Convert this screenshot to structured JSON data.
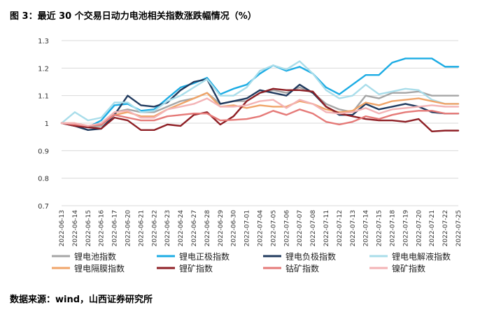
{
  "figure": {
    "title": "图 3：最近 30 个交易日动力电池相关指数涨跌幅情况（%）",
    "source": "数据来源：wind，山西证券研究所"
  },
  "chart_data": {
    "type": "line",
    "title": "",
    "xlabel": "",
    "ylabel": "",
    "ylim": [
      0.7,
      1.3
    ],
    "yticks": [
      0.7,
      0.8,
      0.9,
      1,
      1.1,
      1.2,
      1.3
    ],
    "ytick_labels": [
      "0.7",
      "0.8",
      "0.9",
      "1",
      "1.1",
      "1.2",
      "1.3"
    ],
    "grid": true,
    "legend_position": "bottom",
    "x": [
      "2022-06-13",
      "2022-06-14",
      "2022-06-15",
      "2022-06-16",
      "2022-06-17",
      "2022-06-20",
      "2022-06-21",
      "2022-06-22",
      "2022-06-23",
      "2022-06-24",
      "2022-06-27",
      "2022-06-28",
      "2022-06-29",
      "2022-06-30",
      "2022-07-01",
      "2022-07-04",
      "2022-07-05",
      "2022-07-06",
      "2022-07-07",
      "2022-07-08",
      "2022-07-11",
      "2022-07-12",
      "2022-07-13",
      "2022-07-14",
      "2022-07-15",
      "2022-07-18",
      "2022-07-19",
      "2022-07-20",
      "2022-07-21",
      "2022-07-22",
      "2022-07-25"
    ],
    "series": [
      {
        "name": "锂电池指数",
        "color": "#a6a6a6",
        "values": [
          1.0,
          0.995,
          0.985,
          0.99,
          1.04,
          1.05,
          1.04,
          1.04,
          1.06,
          1.08,
          1.09,
          1.11,
          1.07,
          1.08,
          1.08,
          1.11,
          1.12,
          1.11,
          1.13,
          1.11,
          1.07,
          1.05,
          1.04,
          1.1,
          1.09,
          1.11,
          1.11,
          1.115,
          1.1,
          1.1,
          1.1
        ]
      },
      {
        "name": "锂电正极指数",
        "color": "#1cace4",
        "values": [
          1.0,
          0.99,
          0.985,
          1.01,
          1.065,
          1.07,
          1.045,
          1.05,
          1.09,
          1.13,
          1.145,
          1.165,
          1.105,
          1.125,
          1.14,
          1.18,
          1.21,
          1.19,
          1.205,
          1.18,
          1.13,
          1.105,
          1.14,
          1.175,
          1.175,
          1.22,
          1.235,
          1.235,
          1.235,
          1.205,
          1.205
        ]
      },
      {
        "name": "锂电负极指数",
        "color": "#203a5e",
        "values": [
          1.0,
          0.99,
          0.975,
          0.98,
          1.03,
          1.1,
          1.065,
          1.06,
          1.075,
          1.12,
          1.15,
          1.16,
          1.07,
          1.08,
          1.09,
          1.12,
          1.11,
          1.1,
          1.14,
          1.11,
          1.06,
          1.03,
          1.03,
          1.07,
          1.05,
          1.06,
          1.07,
          1.06,
          1.04,
          1.035,
          1.035
        ]
      },
      {
        "name": "锂电电解液指数",
        "color": "#a9ddea",
        "values": [
          1.0,
          1.04,
          1.01,
          1.02,
          1.075,
          1.075,
          1.04,
          1.045,
          1.08,
          1.1,
          1.13,
          1.16,
          1.1,
          1.1,
          1.13,
          1.19,
          1.21,
          1.195,
          1.225,
          1.18,
          1.12,
          1.09,
          1.1,
          1.14,
          1.105,
          1.115,
          1.125,
          1.12,
          1.085,
          1.07,
          1.07
        ]
      },
      {
        "name": "锂电隔膜指数",
        "color": "#f0a468",
        "values": [
          1.0,
          1.0,
          0.99,
          0.995,
          1.03,
          1.04,
          1.025,
          1.025,
          1.05,
          1.07,
          1.09,
          1.11,
          1.06,
          1.065,
          1.055,
          1.065,
          1.06,
          1.06,
          1.08,
          1.07,
          1.05,
          1.04,
          1.045,
          1.075,
          1.065,
          1.08,
          1.085,
          1.09,
          1.08,
          1.07,
          1.07
        ]
      },
      {
        "name": "锂矿指数",
        "color": "#8e1f25",
        "values": [
          1.0,
          0.99,
          0.985,
          0.98,
          1.02,
          1.01,
          0.975,
          0.975,
          0.995,
          0.99,
          1.03,
          1.04,
          0.995,
          1.025,
          1.08,
          1.11,
          1.125,
          1.12,
          1.12,
          1.115,
          1.06,
          1.035,
          1.025,
          1.015,
          1.01,
          1.01,
          1.005,
          1.015,
          0.97,
          0.973,
          0.973
        ]
      },
      {
        "name": "钴矿指数",
        "color": "#e57a78",
        "values": [
          1.0,
          0.995,
          0.99,
          0.995,
          1.03,
          1.02,
          1.01,
          1.01,
          1.025,
          1.03,
          1.035,
          1.035,
          1.01,
          1.012,
          1.015,
          1.025,
          1.045,
          1.03,
          1.05,
          1.035,
          1.005,
          0.995,
          1.005,
          1.025,
          1.015,
          1.03,
          1.04,
          1.045,
          1.045,
          1.035,
          1.035
        ]
      },
      {
        "name": "镍矿指数",
        "color": "#f3b3b5",
        "values": [
          1.0,
          1.0,
          0.99,
          1.0,
          1.04,
          1.045,
          1.02,
          1.02,
          1.05,
          1.06,
          1.07,
          1.09,
          1.06,
          1.06,
          1.065,
          1.08,
          1.085,
          1.055,
          1.085,
          1.07,
          1.04,
          1.035,
          1.04,
          1.055,
          1.035,
          1.05,
          1.055,
          1.06,
          1.065,
          1.06,
          1.06
        ]
      }
    ]
  }
}
